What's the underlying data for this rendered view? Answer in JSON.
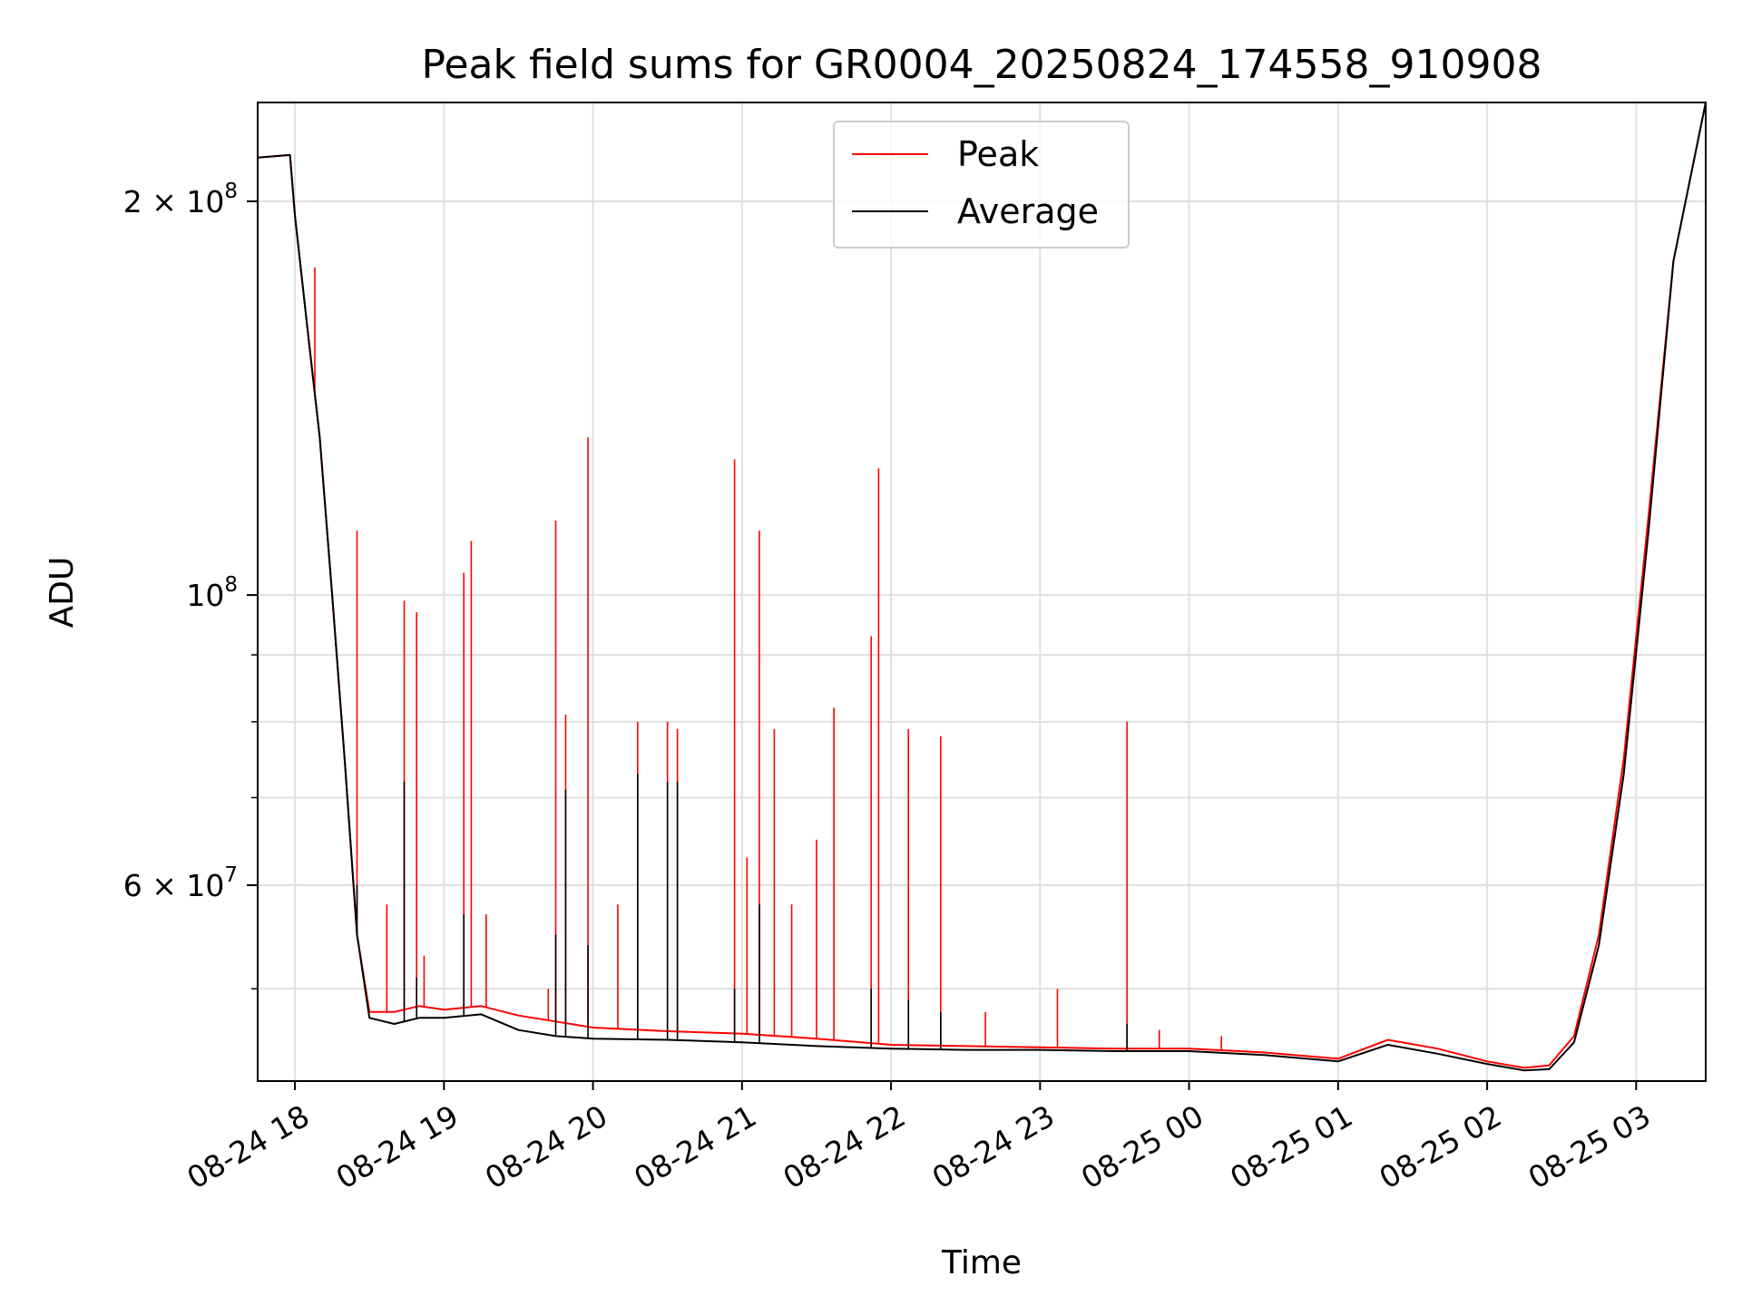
{
  "chart_data": {
    "type": "line",
    "title": "Peak field sums for GR0004_20250824_174558_910908",
    "xlabel": "Time",
    "ylabel": "ADU",
    "yscale": "log",
    "ylim": [
      42500000,
      238000000
    ],
    "xlim": [
      "2025-08-24 17:45",
      "2025-08-25 03:28"
    ],
    "x_ticks": [
      "08-24 18",
      "08-24 19",
      "08-24 20",
      "08-24 21",
      "08-24 22",
      "08-24 23",
      "08-25 00",
      "08-25 01",
      "08-25 02",
      "08-25 03"
    ],
    "y_ticks": [
      {
        "label": "2 × 10^8",
        "base": "2 × 10",
        "exp": "8",
        "value": 200000000
      },
      {
        "label": "10^8",
        "base": "10",
        "exp": "8",
        "value": 100000000
      },
      {
        "label": "6 × 10^7",
        "base": "6 × 10",
        "exp": "7",
        "value": 60000000
      }
    ],
    "grid": true,
    "legend_position": "upper center",
    "colors": {
      "peak": "#ff0000",
      "average": "#000000",
      "grid": "#e0e0e0"
    },
    "series": [
      {
        "name": "Peak",
        "x": [
          "2025-08-24 17:45",
          "2025-08-24 17:58",
          "2025-08-24 18:00",
          "2025-08-24 18:05",
          "2025-08-24 18:10",
          "2025-08-24 18:15",
          "2025-08-24 18:20",
          "2025-08-24 18:25",
          "2025-08-24 18:30",
          "2025-08-24 18:40",
          "2025-08-24 18:50",
          "2025-08-24 19:00",
          "2025-08-24 19:15",
          "2025-08-24 19:30",
          "2025-08-24 19:45",
          "2025-08-24 20:00",
          "2025-08-24 20:30",
          "2025-08-24 21:00",
          "2025-08-24 21:30",
          "2025-08-24 22:00",
          "2025-08-24 22:30",
          "2025-08-24 23:00",
          "2025-08-24 23:30",
          "2025-08-25 00:00",
          "2025-08-25 00:30",
          "2025-08-25 01:00",
          "2025-08-25 01:20",
          "2025-08-25 01:40",
          "2025-08-25 02:00",
          "2025-08-25 02:15",
          "2025-08-25 02:25",
          "2025-08-25 02:35",
          "2025-08-25 02:45",
          "2025-08-25 02:55",
          "2025-08-25 03:05",
          "2025-08-25 03:15",
          "2025-08-25 03:28"
        ],
        "values": [
          216000000,
          217000000,
          195000000,
          160000000,
          132000000,
          100000000,
          75000000,
          55000000,
          48000000,
          48000000,
          48500000,
          48200000,
          48500000,
          47700000,
          47200000,
          46700000,
          46400000,
          46200000,
          45800000,
          45300000,
          45200000,
          45100000,
          45000000,
          45000000,
          44700000,
          44200000,
          45700000,
          45000000,
          44000000,
          43500000,
          43700000,
          46000000,
          55000000,
          75000000,
          115000000,
          180000000,
          238000000
        ],
        "spikes": [
          {
            "x": "2025-08-24 18:08",
            "value": 178000000
          },
          {
            "x": "2025-08-24 18:25",
            "value": 112000000
          },
          {
            "x": "2025-08-24 18:37",
            "value": 58000000
          },
          {
            "x": "2025-08-24 18:44",
            "value": 99000000
          },
          {
            "x": "2025-08-24 18:49",
            "value": 97000000
          },
          {
            "x": "2025-08-24 18:52",
            "value": 53000000
          },
          {
            "x": "2025-08-24 19:08",
            "value": 104000000
          },
          {
            "x": "2025-08-24 19:11",
            "value": 110000000
          },
          {
            "x": "2025-08-24 19:17",
            "value": 57000000
          },
          {
            "x": "2025-08-24 19:42",
            "value": 50000000
          },
          {
            "x": "2025-08-24 19:45",
            "value": 114000000
          },
          {
            "x": "2025-08-24 19:49",
            "value": 81000000
          },
          {
            "x": "2025-08-24 19:58",
            "value": 132000000
          },
          {
            "x": "2025-08-24 20:10",
            "value": 58000000
          },
          {
            "x": "2025-08-24 20:18",
            "value": 80000000
          },
          {
            "x": "2025-08-24 20:30",
            "value": 80000000
          },
          {
            "x": "2025-08-24 20:34",
            "value": 79000000
          },
          {
            "x": "2025-08-24 20:57",
            "value": 127000000
          },
          {
            "x": "2025-08-24 21:02",
            "value": 63000000
          },
          {
            "x": "2025-08-24 21:07",
            "value": 112000000
          },
          {
            "x": "2025-08-24 21:13",
            "value": 79000000
          },
          {
            "x": "2025-08-24 21:20",
            "value": 58000000
          },
          {
            "x": "2025-08-24 21:30",
            "value": 65000000
          },
          {
            "x": "2025-08-24 21:37",
            "value": 82000000
          },
          {
            "x": "2025-08-24 21:52",
            "value": 93000000
          },
          {
            "x": "2025-08-24 21:55",
            "value": 125000000
          },
          {
            "x": "2025-08-24 22:07",
            "value": 79000000
          },
          {
            "x": "2025-08-24 22:20",
            "value": 78000000
          },
          {
            "x": "2025-08-24 22:38",
            "value": 48000000
          },
          {
            "x": "2025-08-24 23:07",
            "value": 50000000
          },
          {
            "x": "2025-08-24 23:35",
            "value": 80000000
          },
          {
            "x": "2025-08-24 23:48",
            "value": 46500000
          },
          {
            "x": "2025-08-25 00:13",
            "value": 46000000
          }
        ]
      },
      {
        "name": "Average",
        "x": [
          "2025-08-24 17:45",
          "2025-08-24 17:58",
          "2025-08-24 18:00",
          "2025-08-24 18:05",
          "2025-08-24 18:10",
          "2025-08-24 18:15",
          "2025-08-24 18:20",
          "2025-08-24 18:25",
          "2025-08-24 18:30",
          "2025-08-24 18:40",
          "2025-08-24 18:50",
          "2025-08-24 19:00",
          "2025-08-24 19:15",
          "2025-08-24 19:30",
          "2025-08-24 19:45",
          "2025-08-24 20:00",
          "2025-08-24 20:30",
          "2025-08-24 21:00",
          "2025-08-24 21:30",
          "2025-08-24 22:00",
          "2025-08-24 22:30",
          "2025-08-24 23:00",
          "2025-08-24 23:30",
          "2025-08-25 00:00",
          "2025-08-25 00:30",
          "2025-08-25 01:00",
          "2025-08-25 01:20",
          "2025-08-25 01:40",
          "2025-08-25 02:00",
          "2025-08-25 02:15",
          "2025-08-25 02:25",
          "2025-08-25 02:35",
          "2025-08-25 02:45",
          "2025-08-25 02:55",
          "2025-08-25 03:05",
          "2025-08-25 03:15",
          "2025-08-25 03:28"
        ],
        "values": [
          216000000,
          217000000,
          195000000,
          160000000,
          132000000,
          100000000,
          75000000,
          55000000,
          47500000,
          47000000,
          47500000,
          47500000,
          47800000,
          46500000,
          46000000,
          45800000,
          45700000,
          45500000,
          45200000,
          45000000,
          44900000,
          44900000,
          44800000,
          44800000,
          44500000,
          44000000,
          45300000,
          44600000,
          43800000,
          43300000,
          43400000,
          45500000,
          54000000,
          73000000,
          112000000,
          180000000,
          238000000
        ],
        "spikes": [
          {
            "x": "2025-08-24 18:25",
            "value": 60000000
          },
          {
            "x": "2025-08-24 18:44",
            "value": 72000000
          },
          {
            "x": "2025-08-24 18:49",
            "value": 51000000
          },
          {
            "x": "2025-08-24 19:08",
            "value": 57000000
          },
          {
            "x": "2025-08-24 19:45",
            "value": 55000000
          },
          {
            "x": "2025-08-24 19:49",
            "value": 71000000
          },
          {
            "x": "2025-08-24 19:58",
            "value": 54000000
          },
          {
            "x": "2025-08-24 20:18",
            "value": 73000000
          },
          {
            "x": "2025-08-24 20:30",
            "value": 72000000
          },
          {
            "x": "2025-08-24 20:34",
            "value": 72000000
          },
          {
            "x": "2025-08-24 20:57",
            "value": 50000000
          },
          {
            "x": "2025-08-24 21:07",
            "value": 58000000
          },
          {
            "x": "2025-08-24 21:52",
            "value": 50000000
          },
          {
            "x": "2025-08-24 22:07",
            "value": 49000000
          },
          {
            "x": "2025-08-24 22:20",
            "value": 48000000
          },
          {
            "x": "2025-08-24 23:35",
            "value": 47000000
          }
        ]
      }
    ]
  }
}
